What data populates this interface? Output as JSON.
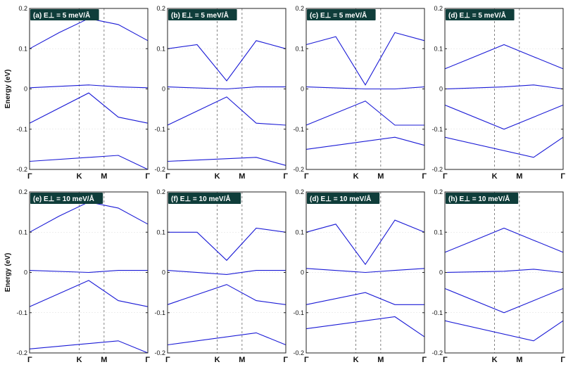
{
  "colors": {
    "band": "#1a1ad6",
    "label_bg": "#0f3d3a",
    "axis": "#222222",
    "kline": "#666666"
  },
  "chart_data": [
    {
      "type": "line",
      "title": "(a) E⊥ = 5 meV/Å",
      "ylabel": "Energy (eV)",
      "ylim": [
        -0.2,
        0.2
      ],
      "yticks": [
        "0.2",
        "0.1",
        "0",
        "-0.1",
        "-0.2"
      ],
      "xticks": [
        "Γ",
        "K",
        "M",
        "Γ"
      ],
      "series": [
        {
          "x": [
            0,
            0.5,
            1,
            1.5,
            2
          ],
          "y": [
            0.1,
            0.14,
            0.175,
            0.16,
            0.12
          ]
        },
        {
          "x": [
            0,
            1,
            1.5,
            2
          ],
          "y": [
            0.003,
            0.01,
            0.005,
            0.003
          ]
        },
        {
          "x": [
            0,
            1,
            1.5,
            2
          ],
          "y": [
            -0.085,
            -0.01,
            -0.07,
            -0.085
          ]
        },
        {
          "x": [
            0,
            1.5,
            2
          ],
          "y": [
            -0.18,
            -0.165,
            -0.2
          ]
        }
      ]
    },
    {
      "type": "line",
      "title": "(b) E⊥ = 5 meV/Å",
      "ylabel": "",
      "ylim": [
        -0.2,
        0.2
      ],
      "yticks": [
        "0.2",
        "0.1",
        "0",
        "-0.1",
        "-0.2"
      ],
      "xticks": [
        "Γ",
        "K",
        "M",
        "Γ"
      ],
      "series": [
        {
          "x": [
            0,
            0.5,
            1,
            1.5,
            2
          ],
          "y": [
            0.1,
            0.11,
            0.02,
            0.12,
            0.1
          ]
        },
        {
          "x": [
            0,
            1,
            1.5,
            2
          ],
          "y": [
            0.005,
            0.0,
            0.005,
            0.005
          ]
        },
        {
          "x": [
            0,
            1,
            1.5,
            2
          ],
          "y": [
            -0.09,
            -0.02,
            -0.085,
            -0.09
          ]
        },
        {
          "x": [
            0,
            1.5,
            2
          ],
          "y": [
            -0.18,
            -0.17,
            -0.19
          ]
        }
      ]
    },
    {
      "type": "line",
      "title": "(c) E⊥ = 5 meV/Å",
      "ylabel": "",
      "ylim": [
        -0.2,
        0.2
      ],
      "yticks": [
        "0.2",
        "0.1",
        "0",
        "-0.1",
        "-0.2"
      ],
      "xticks": [
        "Γ",
        "K",
        "M",
        "Γ"
      ],
      "series": [
        {
          "x": [
            0,
            0.5,
            1,
            1.5,
            2
          ],
          "y": [
            0.11,
            0.13,
            0.01,
            0.14,
            0.12
          ]
        },
        {
          "x": [
            0,
            1,
            1.5,
            2
          ],
          "y": [
            0.005,
            0.0,
            0.0,
            0.005
          ]
        },
        {
          "x": [
            0,
            1,
            1.5,
            2
          ],
          "y": [
            -0.09,
            -0.03,
            -0.09,
            -0.09
          ]
        },
        {
          "x": [
            0,
            1.5,
            2
          ],
          "y": [
            -0.15,
            -0.12,
            -0.14
          ]
        }
      ]
    },
    {
      "type": "line",
      "title": "(d) E⊥ = 5 meV/Å",
      "ylabel": "",
      "ylim": [
        -0.2,
        0.2
      ],
      "yticks": [
        "0.2",
        "0.1",
        "0",
        "-0.1",
        "-0.2"
      ],
      "xticks": [
        "Γ",
        "K",
        "M",
        "Γ"
      ],
      "series": [
        {
          "x": [
            0,
            0.5,
            1,
            1.5,
            2
          ],
          "y": [
            0.05,
            0.08,
            0.11,
            0.08,
            0.05
          ]
        },
        {
          "x": [
            0,
            1,
            1.5,
            2
          ],
          "y": [
            0.0,
            0.005,
            0.01,
            0.0
          ]
        },
        {
          "x": [
            0,
            1,
            1.5,
            2
          ],
          "y": [
            -0.04,
            -0.1,
            -0.07,
            -0.04
          ]
        },
        {
          "x": [
            0,
            1.5,
            2
          ],
          "y": [
            -0.12,
            -0.17,
            -0.12
          ]
        }
      ]
    },
    {
      "type": "line",
      "title": "(e) E⊥ = 10 meV/Å",
      "ylabel": "Energy (eV)",
      "ylim": [
        -0.2,
        0.2
      ],
      "yticks": [
        "0.2",
        "0.1",
        "0",
        "-0.1",
        "-0.2"
      ],
      "xticks": [
        "Γ",
        "K",
        "M",
        "Γ"
      ],
      "series": [
        {
          "x": [
            0,
            0.5,
            1,
            1.5,
            2
          ],
          "y": [
            0.1,
            0.14,
            0.175,
            0.16,
            0.12
          ]
        },
        {
          "x": [
            0,
            1,
            1.5,
            2
          ],
          "y": [
            0.005,
            0.0,
            0.005,
            0.005
          ]
        },
        {
          "x": [
            0,
            1,
            1.5,
            2
          ],
          "y": [
            -0.085,
            -0.02,
            -0.07,
            -0.085
          ]
        },
        {
          "x": [
            0,
            1.5,
            2
          ],
          "y": [
            -0.19,
            -0.17,
            -0.2
          ]
        }
      ]
    },
    {
      "type": "line",
      "title": "(f) E⊥ = 10 meV/Å",
      "ylabel": "",
      "ylim": [
        -0.2,
        0.2
      ],
      "yticks": [
        "0.2",
        "0.1",
        "0",
        "-0.1",
        "-0.2"
      ],
      "xticks": [
        "Γ",
        "K",
        "M",
        "Γ"
      ],
      "series": [
        {
          "x": [
            0,
            0.5,
            1,
            1.5,
            2
          ],
          "y": [
            0.1,
            0.1,
            0.03,
            0.11,
            0.1
          ]
        },
        {
          "x": [
            0,
            1,
            1.5,
            2
          ],
          "y": [
            0.005,
            -0.005,
            0.005,
            0.005
          ]
        },
        {
          "x": [
            0,
            1,
            1.5,
            2
          ],
          "y": [
            -0.08,
            -0.03,
            -0.07,
            -0.08
          ]
        },
        {
          "x": [
            0,
            1.5,
            2
          ],
          "y": [
            -0.18,
            -0.15,
            -0.18
          ]
        }
      ]
    },
    {
      "type": "line",
      "title": "(d) E⊥ = 10 meV/Å",
      "ylabel": "",
      "ylim": [
        -0.2,
        0.2
      ],
      "yticks": [
        "0.2",
        "0.1",
        "0",
        "-0.1",
        "-0.2"
      ],
      "xticks": [
        "Γ",
        "K",
        "M",
        "Γ"
      ],
      "series": [
        {
          "x": [
            0,
            0.5,
            1,
            1.5,
            2
          ],
          "y": [
            0.1,
            0.12,
            0.02,
            0.13,
            0.1
          ]
        },
        {
          "x": [
            0,
            1,
            1.5,
            2
          ],
          "y": [
            0.01,
            0.0,
            0.005,
            0.01
          ]
        },
        {
          "x": [
            0,
            1,
            1.5,
            2
          ],
          "y": [
            -0.08,
            -0.05,
            -0.08,
            -0.08
          ]
        },
        {
          "x": [
            0,
            1.5,
            2
          ],
          "y": [
            -0.14,
            -0.11,
            -0.16
          ]
        }
      ]
    },
    {
      "type": "line",
      "title": "(h) E⊥ = 10 meV/Å",
      "ylabel": "",
      "ylim": [
        -0.2,
        0.2
      ],
      "yticks": [
        "0.2",
        "0.1",
        "0",
        "-0.1",
        "-0.2"
      ],
      "xticks": [
        "Γ",
        "K",
        "M",
        "Γ"
      ],
      "series": [
        {
          "x": [
            0,
            0.5,
            1,
            1.5,
            2
          ],
          "y": [
            0.05,
            0.08,
            0.11,
            0.08,
            0.05
          ]
        },
        {
          "x": [
            0,
            1,
            1.5,
            2
          ],
          "y": [
            0.0,
            0.003,
            0.008,
            0.0
          ]
        },
        {
          "x": [
            0,
            1,
            1.5,
            2
          ],
          "y": [
            -0.04,
            -0.1,
            -0.07,
            -0.04
          ]
        },
        {
          "x": [
            0,
            1.5,
            2
          ],
          "y": [
            -0.12,
            -0.17,
            -0.12
          ]
        }
      ]
    }
  ]
}
